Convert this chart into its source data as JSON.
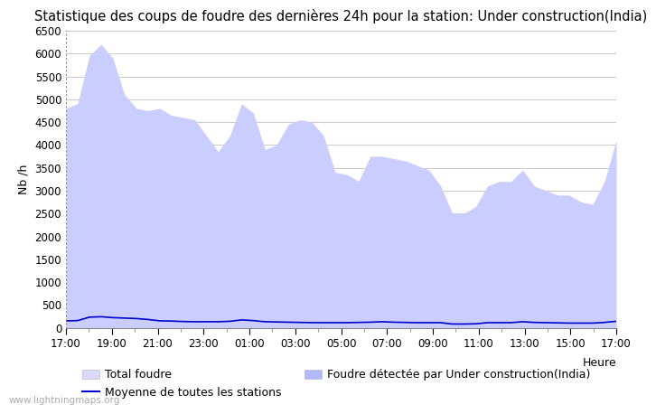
{
  "title": "Statistique des coups de foudre des dernières 24h pour la station: Under construction(India)",
  "xlabel": "Heure",
  "ylabel": "Nb /h",
  "watermark": "www.lightningmaps.org",
  "x_tick_labels": [
    "17:00",
    "19:00",
    "21:00",
    "23:00",
    "01:00",
    "03:00",
    "05:00",
    "07:00",
    "09:00",
    "11:00",
    "13:00",
    "15:00",
    "17:00"
  ],
  "x_tick_positions": [
    0,
    2,
    4,
    6,
    8,
    10,
    12,
    14,
    16,
    18,
    20,
    22,
    24
  ],
  "ylim": [
    0,
    6500
  ],
  "yticks": [
    0,
    500,
    1000,
    1500,
    2000,
    2500,
    3000,
    3500,
    4000,
    4500,
    5000,
    5500,
    6000,
    6500
  ],
  "total_foudre": [
    4800,
    4900,
    5950,
    6200,
    5900,
    5100,
    4800,
    4750,
    4800,
    4650,
    4600,
    4550,
    4200,
    3850,
    4200,
    4900,
    4700,
    3900,
    4000,
    4450,
    4550,
    4500,
    4200,
    3400,
    3350,
    3200,
    3750,
    3750,
    3700,
    3650,
    3550,
    3450,
    3100,
    2500,
    2500,
    2650,
    3100,
    3200,
    3200,
    3450,
    3100,
    3000,
    2900,
    2900,
    2750,
    2700,
    3200,
    4100
  ],
  "moyenne_stations": [
    150,
    155,
    230,
    240,
    220,
    210,
    200,
    180,
    150,
    145,
    135,
    130,
    130,
    130,
    140,
    170,
    155,
    130,
    125,
    120,
    115,
    110,
    110,
    110,
    110,
    115,
    120,
    130,
    120,
    115,
    110,
    110,
    110,
    80,
    80,
    85,
    110,
    110,
    110,
    130,
    115,
    110,
    105,
    100,
    100,
    100,
    115,
    140
  ],
  "color_total": "#d8daff",
  "color_detectee": "#b0b8ff",
  "color_moyenne": "#0000cc",
  "bg_color": "#ffffff",
  "plot_bg": "#ffffff",
  "grid_color": "#cccccc",
  "title_fontsize": 10.5,
  "label_fontsize": 9,
  "tick_fontsize": 8.5,
  "legend_fontsize": 9,
  "n_points": 48
}
